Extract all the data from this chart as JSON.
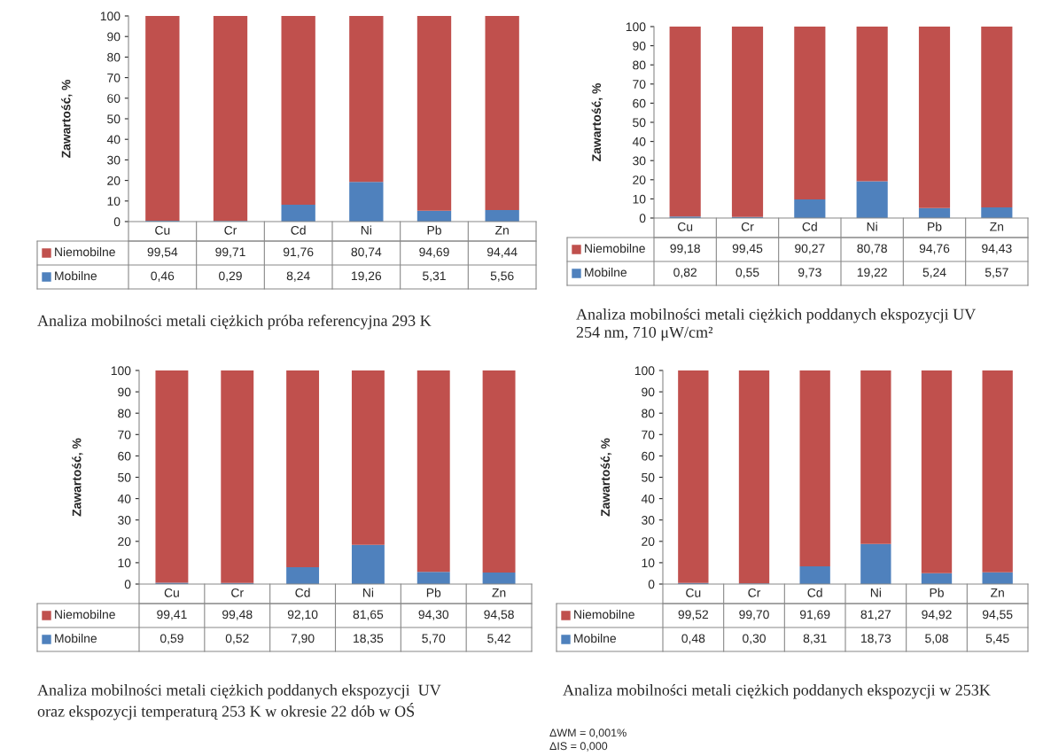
{
  "chart_data": [
    {
      "type": "bar",
      "stacked": true,
      "title": "Analiza mobilności metali ciężkich próba referencyjna 293 K",
      "ylabel": "Zawartość, %",
      "categories": [
        "Cu",
        "Cr",
        "Cd",
        "Ni",
        "Pb",
        "Zn"
      ],
      "ylim": [
        0,
        100
      ],
      "yticks": [
        0,
        10,
        20,
        30,
        40,
        50,
        60,
        70,
        80,
        90,
        100
      ],
      "grid": false,
      "legend": "bottom",
      "series": [
        {
          "name": "Mobilne",
          "color": "#4f81bd",
          "values": [
            0.46,
            0.29,
            8.24,
            19.26,
            5.31,
            5.56
          ],
          "value_labels": [
            "0,46",
            "0,29",
            "8,24",
            "19,26",
            "5,31",
            "5,56"
          ]
        },
        {
          "name": "Niemobilne",
          "color": "#c0504d",
          "values": [
            99.54,
            99.71,
            91.76,
            80.74,
            94.69,
            94.44
          ],
          "value_labels": [
            "99,54",
            "99,71",
            "91,76",
            "80,74",
            "94,69",
            "94,44"
          ]
        }
      ]
    },
    {
      "type": "bar",
      "stacked": true,
      "title": "Analiza mobilności metali ciężkich poddanych ekspozycji UV\n254 nm, 710 μW/cm²",
      "ylabel": "Zawartość, %",
      "categories": [
        "Cu",
        "Cr",
        "Cd",
        "Ni",
        "Pb",
        "Zn"
      ],
      "ylim": [
        0,
        100
      ],
      "yticks": [
        0,
        10,
        20,
        30,
        40,
        50,
        60,
        70,
        80,
        90,
        100
      ],
      "grid": false,
      "legend": "bottom",
      "series": [
        {
          "name": "Mobilne",
          "color": "#4f81bd",
          "values": [
            0.82,
            0.55,
            9.73,
            19.22,
            5.24,
            5.57
          ],
          "value_labels": [
            "0,82",
            "0,55",
            "9,73",
            "19,22",
            "5,24",
            "5,57"
          ]
        },
        {
          "name": "Niemobilne",
          "color": "#c0504d",
          "values": [
            99.18,
            99.45,
            90.27,
            80.78,
            94.76,
            94.43
          ],
          "value_labels": [
            "99,18",
            "99,45",
            "90,27",
            "80,78",
            "94,76",
            "94,43"
          ]
        }
      ]
    },
    {
      "type": "bar",
      "stacked": true,
      "title": "Analiza mobilności metali ciężkich poddanych ekspozycji  UV\noraz ekspozycji temperaturą 253 K w okresie 22 dób w OŚ",
      "ylabel": "Zawartość, %",
      "categories": [
        "Cu",
        "Cr",
        "Cd",
        "Ni",
        "Pb",
        "Zn"
      ],
      "ylim": [
        0,
        100
      ],
      "yticks": [
        0,
        10,
        20,
        30,
        40,
        50,
        60,
        70,
        80,
        90,
        100
      ],
      "grid": false,
      "legend": "bottom",
      "series": [
        {
          "name": "Mobilne",
          "color": "#4f81bd",
          "values": [
            0.59,
            0.52,
            7.9,
            18.35,
            5.7,
            5.42
          ],
          "value_labels": [
            "0,59",
            "0,52",
            "7,90",
            "18,35",
            "5,70",
            "5,42"
          ]
        },
        {
          "name": "Niemobilne",
          "color": "#c0504d",
          "values": [
            99.41,
            99.48,
            92.1,
            81.65,
            94.3,
            94.58
          ],
          "value_labels": [
            "99,41",
            "99,48",
            "92,10",
            "81,65",
            "94,30",
            "94,58"
          ]
        }
      ]
    },
    {
      "type": "bar",
      "stacked": true,
      "title": "Analiza mobilności metali ciężkich poddanych ekspozycji w 253K",
      "ylabel": "Zawartość, %",
      "categories": [
        "Cu",
        "Cr",
        "Cd",
        "Ni",
        "Pb",
        "Zn"
      ],
      "ylim": [
        0,
        100
      ],
      "yticks": [
        0,
        10,
        20,
        30,
        40,
        50,
        60,
        70,
        80,
        90,
        100
      ],
      "grid": false,
      "legend": "bottom",
      "annotations": [
        "ΔWM = 0,001%",
        "ΔIS = 0,000"
      ],
      "series": [
        {
          "name": "Mobilne",
          "color": "#4f81bd",
          "values": [
            0.48,
            0.3,
            8.31,
            18.73,
            5.08,
            5.45
          ],
          "value_labels": [
            "0,48",
            "0,30",
            "8,31",
            "18,73",
            "5,08",
            "5,45"
          ]
        },
        {
          "name": "Niemobilne",
          "color": "#c0504d",
          "values": [
            99.52,
            99.7,
            91.69,
            81.27,
            94.92,
            94.55
          ],
          "value_labels": [
            "99,52",
            "99,70",
            "91,69",
            "81,27",
            "94,92",
            "94,55"
          ]
        }
      ]
    }
  ]
}
